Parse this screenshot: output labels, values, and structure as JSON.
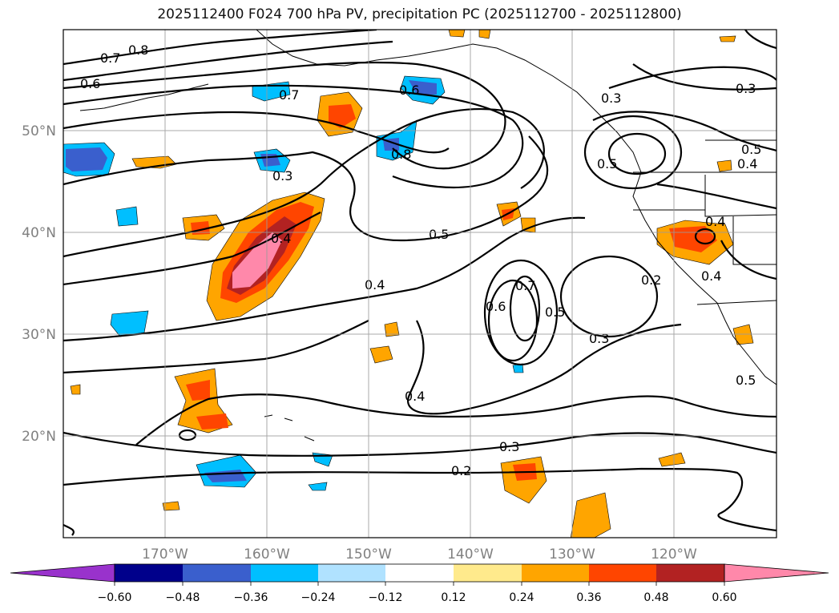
{
  "title": "2025112400 F024 700 hPa PV, precipitation PC (2025112700 - 2025112800)",
  "map": {
    "lat_labels": [
      "50°N",
      "40°N",
      "30°N",
      "20°N"
    ],
    "lon_labels": [
      "170°W",
      "160°W",
      "150°W",
      "140°W",
      "130°W",
      "120°W"
    ],
    "contour_labels": [
      "0.8",
      "0.7",
      "0.6",
      "0.7",
      "0.6",
      "0.8",
      "0.3",
      "0.4",
      "0.5",
      "0.4",
      "0.4",
      "0.3",
      "0.2",
      "0.3",
      "0.3",
      "0.5",
      "0.4",
      "0.4",
      "0.5",
      "0.2",
      "0.4",
      "0.3",
      "0.5",
      "0.7",
      "0.6",
      "0.5"
    ]
  },
  "colorbar": {
    "ticks": [
      "−0.60",
      "−0.48",
      "−0.36",
      "−0.24",
      "−0.12",
      "0.12",
      "0.24",
      "0.36",
      "0.48",
      "0.60"
    ],
    "colors": {
      "neg_extend": "#9932cc",
      "bins": [
        "#00008b",
        "#3a5fcd",
        "#00bfff",
        "#b0e2ff",
        "#ffffff",
        "#ffea8c",
        "#ffa500",
        "#ff4500",
        "#b22222",
        "#ff88aa"
      ],
      "pos_extend": "#ff88aa"
    }
  }
}
